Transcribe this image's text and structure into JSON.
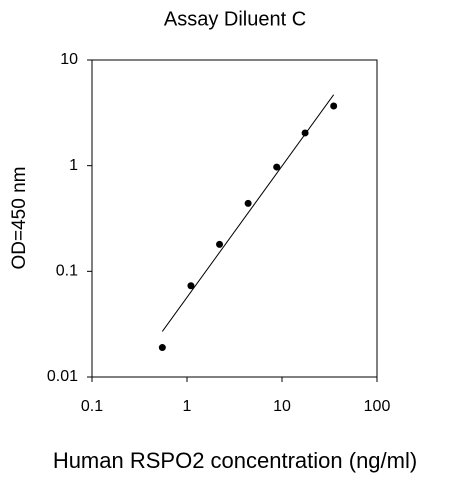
{
  "chart_data": {
    "type": "scatter",
    "title": "Assay Diluent C",
    "xlabel": "Human RSPO2 concentration (ng/ml)",
    "ylabel": "OD=450 nm",
    "x": [
      0.55,
      1.1,
      2.2,
      4.4,
      8.8,
      17.5,
      35
    ],
    "series": [
      {
        "color": "#000000",
        "values": [
          0.019,
          0.073,
          0.18,
          0.44,
          0.97,
          2.04,
          3.67
        ]
      }
    ],
    "fit_line": {
      "color": "#000000",
      "x": [
        0.55,
        35
      ],
      "y": [
        0.027,
        4.7
      ]
    },
    "log_x": true,
    "log_y": true,
    "xlim": [
      0.1,
      100
    ],
    "ylim": [
      0.01,
      10
    ],
    "xticks": [
      0.1,
      1,
      10,
      100
    ],
    "yticks": [
      0.01,
      0.1,
      1,
      10
    ]
  }
}
